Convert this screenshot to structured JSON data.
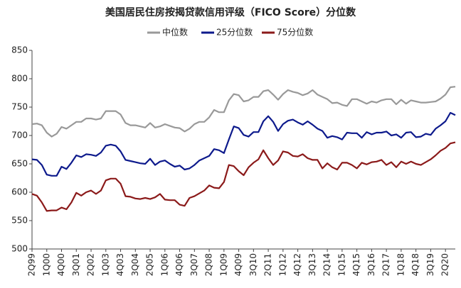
{
  "chart_data": {
    "type": "line",
    "title": "美国居民住房按揭贷款信用评级（FICO Score）分位数",
    "categories": [
      "2Q99",
      null,
      null,
      "1Q00",
      null,
      null,
      "4Q00",
      null,
      null,
      "3Q01",
      null,
      null,
      "2Q02",
      null,
      null,
      "1Q03",
      null,
      null,
      "4Q03",
      null,
      null,
      "3Q04",
      null,
      null,
      "2Q05",
      null,
      null,
      "1Q06",
      null,
      null,
      "4Q06",
      null,
      null,
      "3Q07",
      null,
      null,
      "2Q08",
      null,
      null,
      "1Q09",
      null,
      null,
      "4Q09",
      null,
      null,
      "3Q10",
      null,
      null,
      "2Q11",
      null,
      null,
      "1Q12",
      null,
      null,
      "4Q12",
      null,
      null,
      "3Q13",
      null,
      null,
      "2Q14",
      null,
      null,
      "1Q15",
      null,
      null,
      "4Q15",
      null,
      null,
      "3Q16",
      null,
      null,
      "2Q17",
      null,
      null,
      "1Q18",
      null,
      null,
      "4Q18",
      null,
      null,
      "3Q19",
      null,
      null,
      "2Q20",
      null,
      null
    ],
    "series": [
      {
        "name": "中位数",
        "color": "#999999",
        "values": [
          720,
          721,
          718,
          705,
          698,
          703,
          715,
          712,
          718,
          724,
          724,
          730,
          730,
          728,
          730,
          743,
          743,
          743,
          737,
          722,
          718,
          718,
          716,
          714,
          722,
          714,
          716,
          720,
          717,
          714,
          713,
          707,
          712,
          720,
          724,
          724,
          732,
          745,
          741,
          741,
          762,
          773,
          771,
          760,
          762,
          768,
          768,
          778,
          780,
          772,
          763,
          773,
          780,
          777,
          775,
          771,
          774,
          780,
          772,
          768,
          764,
          757,
          758,
          754,
          752,
          764,
          764,
          760,
          756,
          760,
          758,
          762,
          764,
          764,
          755,
          763,
          756,
          762,
          760,
          758,
          758,
          759,
          760,
          765,
          772,
          785,
          786
        ]
      },
      {
        "name": "25分位数",
        "color": "#0d1a8c",
        "values": [
          658,
          657,
          648,
          631,
          629,
          629,
          645,
          641,
          652,
          665,
          662,
          667,
          666,
          664,
          670,
          682,
          684,
          682,
          672,
          657,
          655,
          653,
          651,
          650,
          659,
          648,
          654,
          656,
          650,
          645,
          647,
          640,
          642,
          648,
          656,
          660,
          664,
          676,
          674,
          669,
          693,
          716,
          713,
          701,
          698,
          706,
          706,
          725,
          734,
          724,
          708,
          720,
          726,
          728,
          723,
          719,
          725,
          719,
          712,
          708,
          696,
          699,
          697,
          693,
          705,
          704,
          704,
          696,
          706,
          702,
          705,
          705,
          707,
          700,
          702,
          696,
          705,
          706,
          697,
          698,
          703,
          701,
          712,
          718,
          725,
          740,
          736
        ]
      },
      {
        "name": "75分位数",
        "color": "#8b1a1a",
        "values": [
          597,
          594,
          582,
          567,
          568,
          568,
          573,
          570,
          582,
          599,
          594,
          600,
          603,
          597,
          603,
          621,
          624,
          624,
          615,
          593,
          592,
          589,
          588,
          590,
          588,
          591,
          597,
          587,
          586,
          586,
          578,
          576,
          590,
          593,
          598,
          603,
          612,
          608,
          607,
          618,
          648,
          646,
          637,
          630,
          644,
          652,
          658,
          674,
          660,
          648,
          656,
          672,
          670,
          664,
          663,
          667,
          660,
          657,
          657,
          642,
          651,
          644,
          640,
          652,
          652,
          648,
          642,
          652,
          649,
          653,
          654,
          657,
          648,
          653,
          644,
          654,
          650,
          654,
          650,
          648,
          653,
          658,
          665,
          673,
          678,
          686,
          688
        ]
      }
    ],
    "ylim": [
      500,
      850
    ],
    "yticks": [
      500,
      550,
      600,
      650,
      700,
      750,
      800,
      850
    ]
  }
}
